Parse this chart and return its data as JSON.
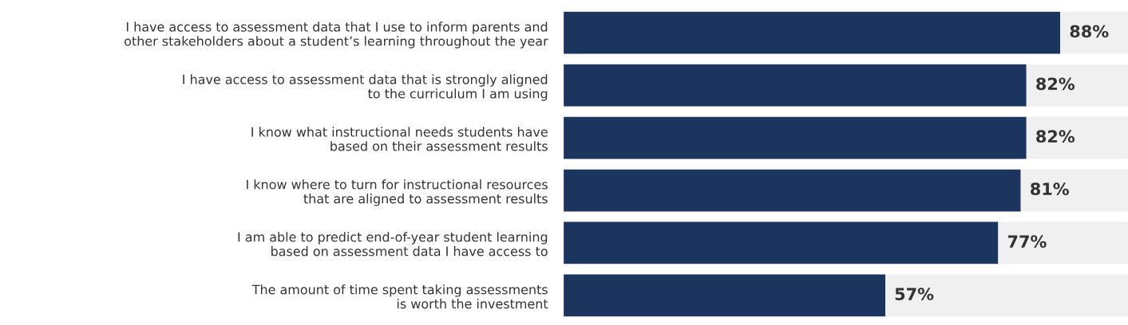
{
  "chart_data": {
    "type": "bar",
    "orientation": "horizontal",
    "stacked": true,
    "categories": [
      "I have access to assessment data that I use to inform parents and\nother stakeholders about a student’s learning throughout the year",
      "I have access to assessment data that is strongly aligned\nto the curriculum I am using",
      "I know what instructional needs students have\nbased on their assessment results",
      "I know where to turn for instructional resources\nthat are aligned to assessment results",
      "I am able to predict end-of-year student learning\nbased on assessment data I have access to",
      "The amount of time spent taking assessments\nis worth the investment"
    ],
    "series": [
      {
        "color": "#1c355e",
        "values": [
          88,
          82,
          82,
          81,
          77,
          57
        ],
        "value_labels": [
          "88%",
          "82%",
          "82%",
          "81%",
          "77%",
          "57%"
        ]
      },
      {
        "color": "#f0f0f0",
        "values": [
          12,
          18,
          18,
          19,
          23,
          43
        ]
      }
    ],
    "xlim": [
      0,
      100
    ],
    "tick_labels": "y",
    "grid": false,
    "legend": false
  }
}
